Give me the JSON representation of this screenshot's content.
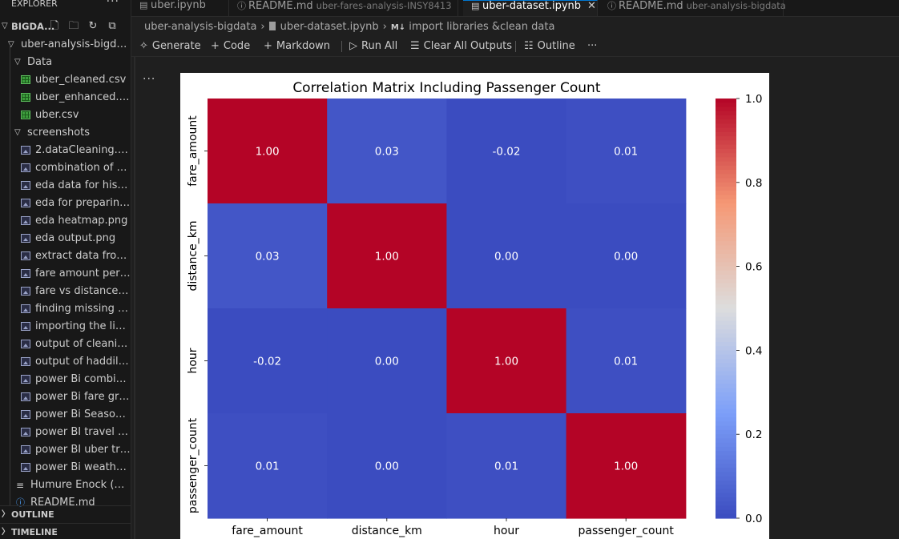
{
  "sidebar": {
    "title": "EXPLORER",
    "more": "···",
    "root_label": "BIGDA...",
    "root_folder": "uber-analysis-bigdata",
    "data_folder": "Data",
    "data_files": [
      "uber_cleaned.csv",
      "uber_enhanced.csv",
      "uber.csv"
    ],
    "screenshots_folder": "screenshots",
    "screenshot_files": [
      "2.dataCleaning.png",
      "combination of ed...",
      "eda data for histog...",
      "eda for preparing ...",
      "eda heatmap.png",
      "eda output.png",
      "extract data from e...",
      "fare amount per h...",
      "fare vs distance .png",
      "finding missing val...",
      "importing the libra...",
      "output of cleaning ...",
      "output of haddilin...",
      "power Bi combinat...",
      "power Bi fare grap...",
      "power Bi Season in...",
      "power BI travel par...",
      "power BI uber trip ...",
      "power Bi weathere..."
    ],
    "other_files": [
      "Humure Enock (273...",
      "README.md"
    ],
    "outline_label": "OUTLINE",
    "timeline_label": "TIMELINE"
  },
  "tabs": [
    {
      "label": "uber.ipynb",
      "desc": "",
      "active": false
    },
    {
      "label": "README.md",
      "desc": "uber-fares-analysis-INSY8413",
      "active": false
    },
    {
      "label": "uber-dataset.ipynb",
      "desc": "",
      "active": true
    },
    {
      "label": "README.md",
      "desc": "uber-analysis-bigdata",
      "active": false
    }
  ],
  "breadcrumb": {
    "folder": "uber-analysis-bigdata",
    "file": "uber-dataset.ipynb",
    "md_marker": "M↓",
    "section": "import libraries &clean data"
  },
  "toolbar": {
    "generate": "Generate",
    "code": "Code",
    "markdown": "Markdown",
    "run_all": "Run All",
    "clear_outputs": "Clear All Outputs",
    "outline": "Outline",
    "more": "···"
  },
  "cell_more": "···",
  "chart_data": {
    "type": "heatmap",
    "title": "Correlation Matrix Including Passenger Count",
    "categories": [
      "fare_amount",
      "distance_km",
      "hour",
      "passenger_count"
    ],
    "values": [
      [
        1.0,
        0.03,
        -0.02,
        0.01
      ],
      [
        0.03,
        1.0,
        -0.0,
        -0.0
      ],
      [
        -0.02,
        -0.0,
        1.0,
        0.01
      ],
      [
        0.01,
        -0.0,
        0.01,
        1.0
      ]
    ],
    "colormap": "coolwarm",
    "colorbar_range": [
      0.0,
      1.0
    ],
    "colorbar_ticks": [
      "0.0",
      "0.2",
      "0.4",
      "0.6",
      "0.8",
      "1.0"
    ],
    "annotate": true,
    "grid": false
  }
}
